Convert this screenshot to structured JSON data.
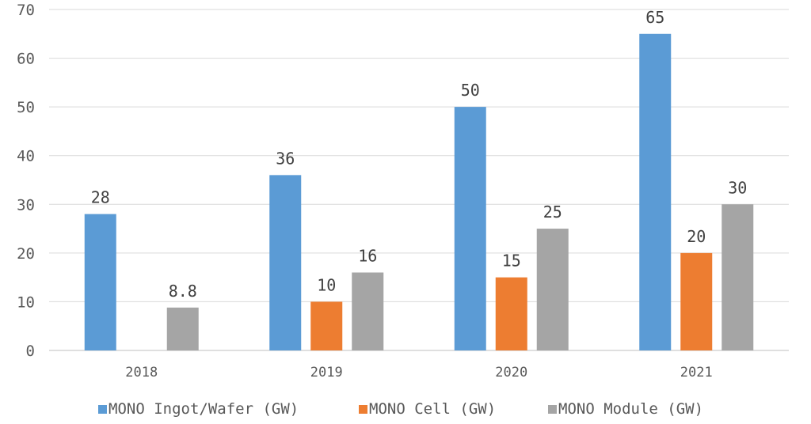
{
  "chart_data": {
    "type": "bar",
    "title": "",
    "xlabel": "",
    "ylabel": "",
    "categories": [
      "2018",
      "2019",
      "2020",
      "2021"
    ],
    "ylim": [
      0,
      70
    ],
    "yticks": [
      0,
      10,
      20,
      30,
      40,
      50,
      60,
      70
    ],
    "grid": true,
    "legend_position": "bottom",
    "series": [
      {
        "name": "MONO Ingot/Wafer (GW)",
        "color": "#5B9BD5",
        "values": [
          28,
          36,
          50,
          65
        ],
        "labels": [
          "28",
          "36",
          "50",
          "65"
        ]
      },
      {
        "name": "MONO Cell (GW)",
        "color": "#ED7D31",
        "values": [
          null,
          10,
          15,
          20
        ],
        "labels": [
          "",
          "10",
          "15",
          "20"
        ]
      },
      {
        "name": "MONO Module (GW)",
        "color": "#A5A5A5",
        "values": [
          8.8,
          16,
          25,
          30
        ],
        "labels": [
          "8.8",
          "16",
          "25",
          "30"
        ]
      }
    ]
  }
}
